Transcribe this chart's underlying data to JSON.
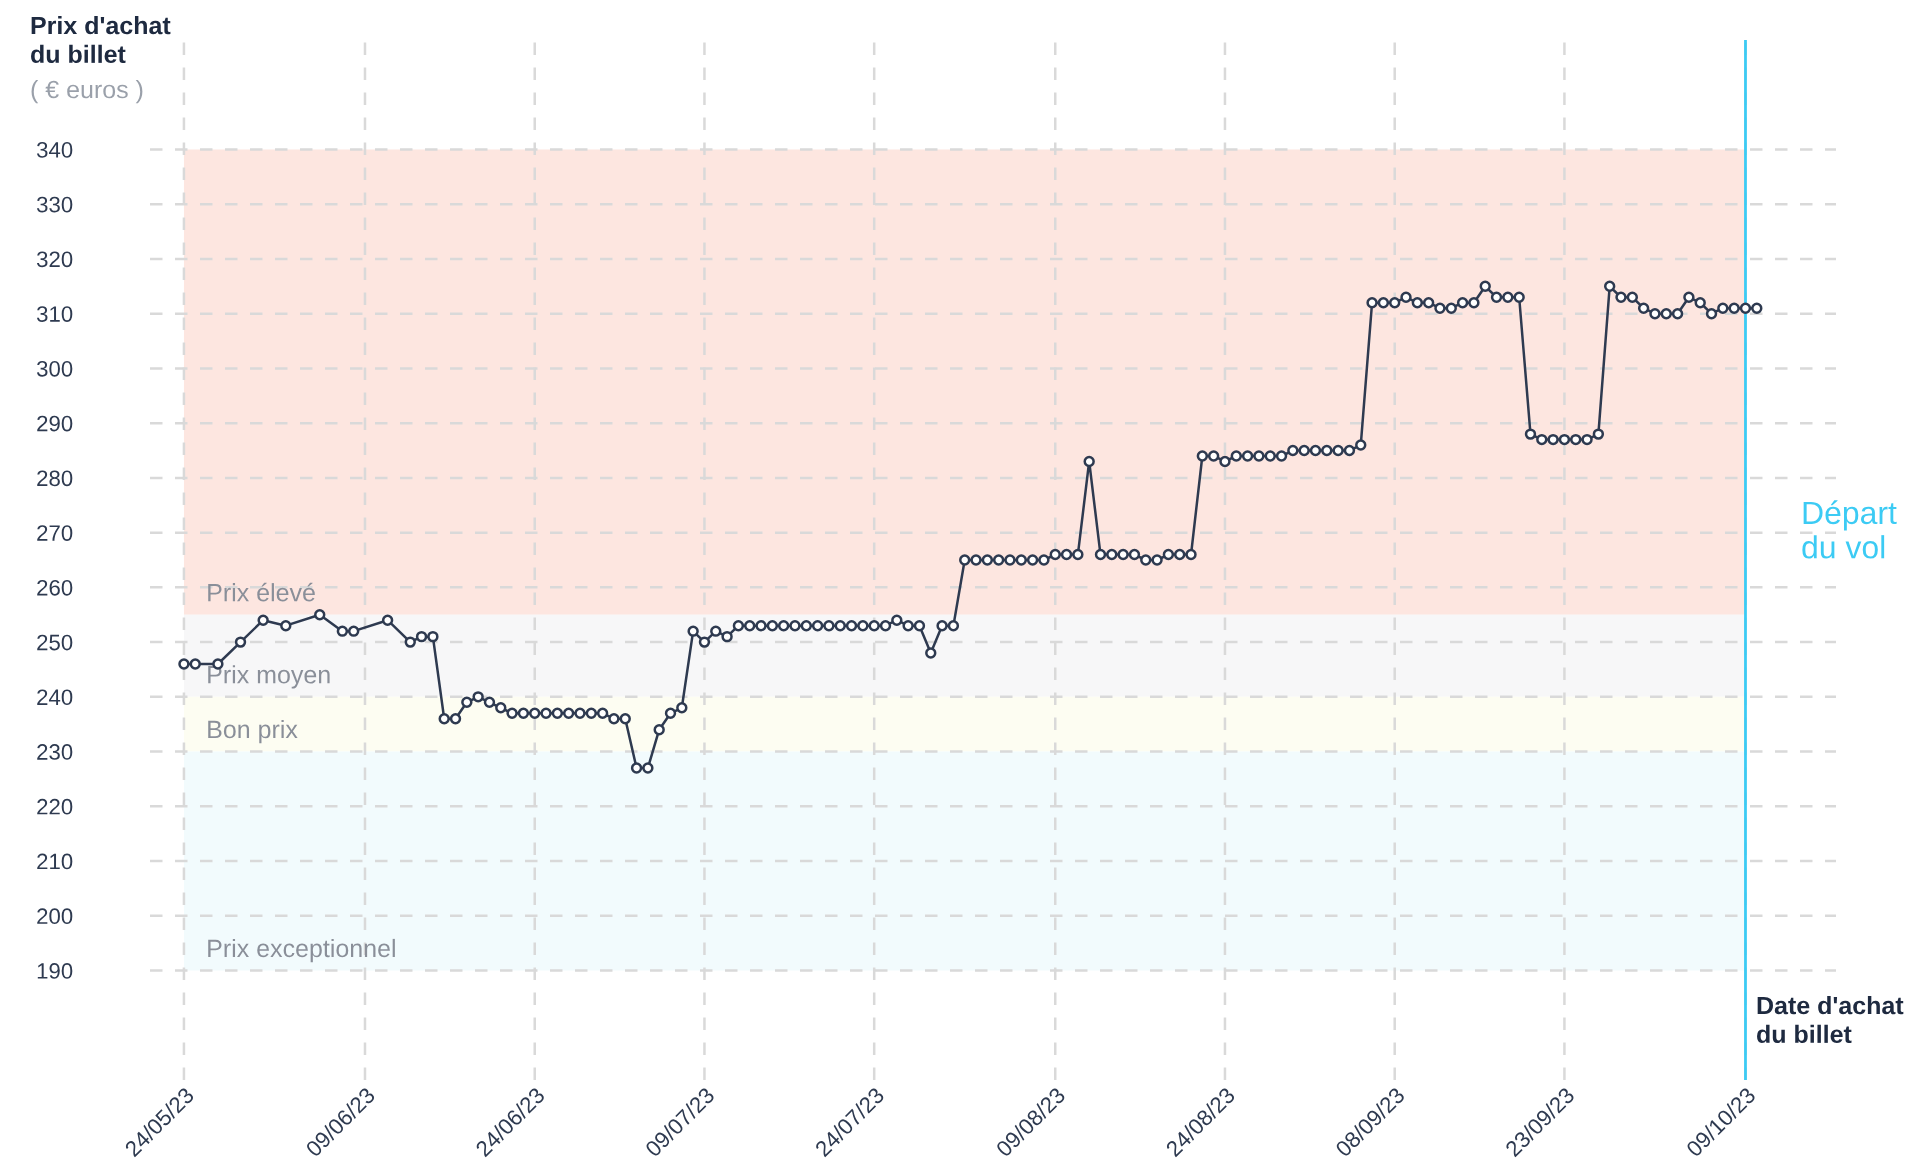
{
  "chart_data": {
    "type": "line",
    "ylabel": "Prix d'achat\ndu billet",
    "xlabel": "Date d'achat\ndu billet",
    "annotations": [
      "( € euros )"
    ],
    "marker": "circle",
    "line_style": "solid",
    "grid": true,
    "xlim": [
      "2023-05-21",
      "2023-10-17"
    ],
    "ylim": [
      170,
      360
    ],
    "xticks": [
      {
        "value": "2023-05-24",
        "label": "24/05/23"
      },
      {
        "value": "2023-06-09",
        "label": "09/06/23"
      },
      {
        "value": "2023-06-24",
        "label": "24/06/23"
      },
      {
        "value": "2023-07-09",
        "label": "09/07/23"
      },
      {
        "value": "2023-07-24",
        "label": "24/07/23"
      },
      {
        "value": "2023-08-09",
        "label": "09/08/23"
      },
      {
        "value": "2023-08-24",
        "label": "24/08/23"
      },
      {
        "value": "2023-09-08",
        "label": "08/09/23"
      },
      {
        "value": "2023-09-23",
        "label": "23/09/23"
      },
      {
        "value": "2023-10-09",
        "label": "09/10/23"
      }
    ],
    "yticks": [
      190,
      200,
      210,
      220,
      230,
      240,
      250,
      260,
      270,
      280,
      290,
      300,
      310,
      320,
      330,
      340
    ],
    "bands": [
      {
        "axis": "y",
        "from": 255,
        "to": 340,
        "label": "Prix élevé",
        "color": "#fde6e0"
      },
      {
        "axis": "y",
        "from": 240,
        "to": 255,
        "label": "Prix moyen",
        "color": "#f7f7f8"
      },
      {
        "axis": "y",
        "from": 230,
        "to": 240,
        "label": "Bon prix",
        "color": "#fdfdf2"
      },
      {
        "axis": "y",
        "from": 190,
        "to": 230,
        "label": "Prix exceptionnel",
        "color": "#f2fbfd"
      }
    ],
    "ref_lines": [
      {
        "axis": "x",
        "value": "2023-10-09",
        "label": "Départ\ndu vol",
        "color": "#3ccbf4"
      }
    ],
    "series": [
      {
        "color": "#2e3a50",
        "x": [
          "2023-05-24",
          "2023-05-25",
          "2023-05-27",
          "2023-05-29",
          "2023-05-31",
          "2023-06-02",
          "2023-06-05",
          "2023-06-07",
          "2023-06-08",
          "2023-06-11",
          "2023-06-13",
          "2023-06-14",
          "2023-06-15",
          "2023-06-16",
          "2023-06-17",
          "2023-06-18",
          "2023-06-19",
          "2023-06-20",
          "2023-06-21",
          "2023-06-22",
          "2023-06-23",
          "2023-06-24",
          "2023-06-25",
          "2023-06-26",
          "2023-06-27",
          "2023-06-28",
          "2023-06-29",
          "2023-06-30",
          "2023-07-01",
          "2023-07-02",
          "2023-07-03",
          "2023-07-04",
          "2023-07-05",
          "2023-07-06",
          "2023-07-07",
          "2023-07-08",
          "2023-07-09",
          "2023-07-10",
          "2023-07-11",
          "2023-07-12",
          "2023-07-13",
          "2023-07-14",
          "2023-07-15",
          "2023-07-16",
          "2023-07-17",
          "2023-07-18",
          "2023-07-19",
          "2023-07-20",
          "2023-07-21",
          "2023-07-22",
          "2023-07-23",
          "2023-07-24",
          "2023-07-25",
          "2023-07-26",
          "2023-07-27",
          "2023-07-28",
          "2023-07-29",
          "2023-07-30",
          "2023-07-31",
          "2023-08-01",
          "2023-08-02",
          "2023-08-03",
          "2023-08-04",
          "2023-08-05",
          "2023-08-06",
          "2023-08-07",
          "2023-08-08",
          "2023-08-09",
          "2023-08-10",
          "2023-08-11",
          "2023-08-12",
          "2023-08-13",
          "2023-08-14",
          "2023-08-15",
          "2023-08-16",
          "2023-08-17",
          "2023-08-18",
          "2023-08-19",
          "2023-08-20",
          "2023-08-21",
          "2023-08-22",
          "2023-08-23",
          "2023-08-24",
          "2023-08-25",
          "2023-08-26",
          "2023-08-27",
          "2023-08-28",
          "2023-08-29",
          "2023-08-30",
          "2023-08-31",
          "2023-09-01",
          "2023-09-02",
          "2023-09-03",
          "2023-09-04",
          "2023-09-05",
          "2023-09-06",
          "2023-09-07",
          "2023-09-08",
          "2023-09-09",
          "2023-09-10",
          "2023-09-11",
          "2023-09-12",
          "2023-09-13",
          "2023-09-14",
          "2023-09-15",
          "2023-09-16",
          "2023-09-17",
          "2023-09-18",
          "2023-09-19",
          "2023-09-20",
          "2023-09-21",
          "2023-09-22",
          "2023-09-23",
          "2023-09-24",
          "2023-09-25",
          "2023-09-26",
          "2023-09-27",
          "2023-09-28",
          "2023-09-29",
          "2023-09-30",
          "2023-10-01",
          "2023-10-02",
          "2023-10-03",
          "2023-10-04",
          "2023-10-05",
          "2023-10-06",
          "2023-10-07",
          "2023-10-08",
          "2023-10-09",
          "2023-10-10"
        ],
        "values": [
          246,
          246,
          246,
          250,
          254,
          253,
          255,
          252,
          252,
          254,
          250,
          251,
          251,
          236,
          236,
          239,
          240,
          239,
          238,
          237,
          237,
          237,
          237,
          237,
          237,
          237,
          237,
          237,
          236,
          236,
          227,
          227,
          234,
          237,
          238,
          252,
          250,
          252,
          251,
          253,
          253,
          253,
          253,
          253,
          253,
          253,
          253,
          253,
          253,
          253,
          253,
          253,
          253,
          254,
          253,
          253,
          248,
          253,
          253,
          265,
          265,
          265,
          265,
          265,
          265,
          265,
          265,
          266,
          266,
          266,
          283,
          266,
          266,
          266,
          266,
          265,
          265,
          266,
          266,
          266,
          284,
          284,
          283,
          284,
          284,
          284,
          284,
          284,
          285,
          285,
          285,
          285,
          285,
          285,
          286,
          312,
          312,
          312,
          313,
          312,
          312,
          311,
          311,
          312,
          312,
          315,
          313,
          313,
          313,
          288,
          287,
          287,
          287,
          287,
          287,
          288,
          315,
          313,
          313,
          311,
          310,
          310,
          310,
          313,
          312,
          310,
          311,
          311,
          311,
          311
        ]
      }
    ]
  }
}
